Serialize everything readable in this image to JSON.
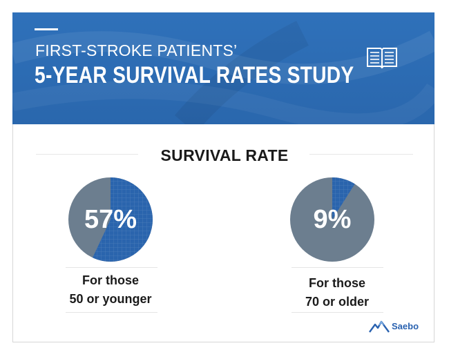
{
  "header": {
    "subtitle": "FIRST-STROKE PATIENTS’",
    "title": "5-YEAR SURVIVAL RATES STUDY",
    "icon": "open-book-icon",
    "background_color": "#2d6db5"
  },
  "section": {
    "title": "SURVIVAL RATE"
  },
  "chart_data": {
    "type": "pie",
    "title": "SURVIVAL RATE",
    "pies": [
      {
        "value_label": "57%",
        "value": 57,
        "caption_line1": "For those",
        "caption_line2": "50 or younger"
      },
      {
        "value_label": "9%",
        "value": 9,
        "caption_line1": "For those",
        "caption_line2": "70 or older"
      }
    ],
    "colors": {
      "survived": "#2a64ad",
      "remainder": "#6c7e8f"
    }
  },
  "brand": {
    "name": "Saebo",
    "icon": "mountain-logo-icon",
    "color": "#2a62b0"
  }
}
